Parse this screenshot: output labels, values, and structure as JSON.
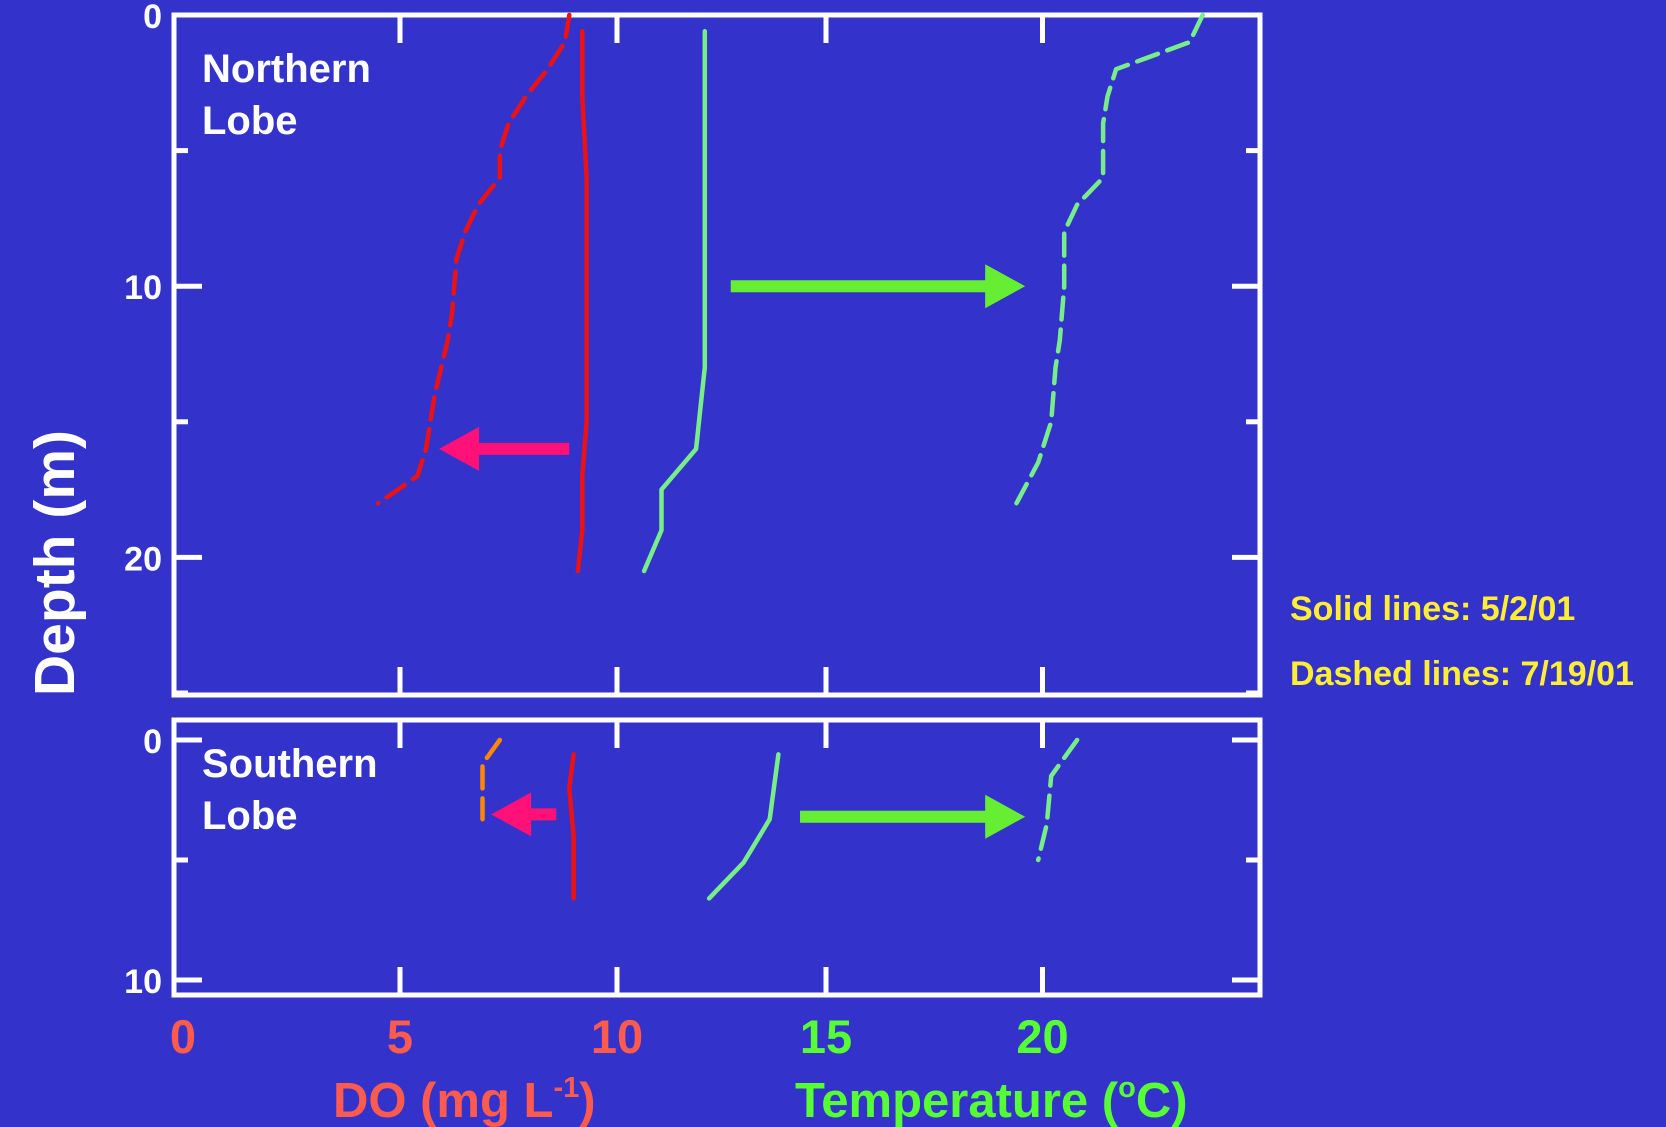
{
  "chart_data": {
    "type": "line",
    "y_axis_label": "Depth (m)",
    "x_axis_labels": [
      {
        "text": "DO (mg L",
        "sup": "-1",
        "tail": ")",
        "color": "#ff5a4e"
      },
      {
        "text": "Temperature (",
        "sup": "o",
        "tail": "C)",
        "color": "#55ff33"
      }
    ],
    "x_ticks_do": [
      0,
      5,
      10
    ],
    "x_ticks_temp": [
      15,
      20
    ],
    "legend": {
      "solid": "Solid lines: 5/2/01",
      "dashed": "Dashed lines: 7/19/01",
      "color": "#ffee33"
    },
    "panels": [
      {
        "name": "Northern Lobe",
        "label_lines": [
          "Northern",
          "Lobe"
        ],
        "depth_ticks": [
          "0",
          "10",
          "20"
        ],
        "ylim": [
          0,
          25
        ],
        "series": [
          {
            "name": "DO 5/2/01",
            "style": "solid",
            "color": "#ee1111",
            "axis": "do",
            "points": [
              [
                9.2,
                0.6
              ],
              [
                9.2,
                3
              ],
              [
                9.3,
                6
              ],
              [
                9.3,
                10
              ],
              [
                9.3,
                13
              ],
              [
                9.3,
                15
              ],
              [
                9.2,
                17
              ],
              [
                9.2,
                19
              ],
              [
                9.1,
                20.5
              ]
            ]
          },
          {
            "name": "DO 7/19/01",
            "style": "dashed",
            "color": "#ee1111",
            "axis": "do",
            "points": [
              [
                8.9,
                0
              ],
              [
                8.8,
                1
              ],
              [
                8.4,
                2
              ],
              [
                7.9,
                3
              ],
              [
                7.5,
                4
              ],
              [
                7.3,
                5
              ],
              [
                7.3,
                6
              ],
              [
                6.8,
                7
              ],
              [
                6.5,
                8
              ],
              [
                6.3,
                9
              ],
              [
                6.2,
                11
              ],
              [
                6.1,
                12
              ],
              [
                5.8,
                14
              ],
              [
                5.6,
                16
              ],
              [
                5.4,
                17
              ],
              [
                4.5,
                18
              ]
            ]
          },
          {
            "name": "Temperature 5/2/01",
            "style": "solid",
            "color": "#77ee88",
            "axis": "temp",
            "points": [
              [
                12.2,
                0.6
              ],
              [
                12.2,
                3
              ],
              [
                12.2,
                6
              ],
              [
                12.2,
                9
              ],
              [
                12.2,
                10
              ],
              [
                12.2,
                13
              ],
              [
                12.1,
                14.5
              ],
              [
                12.0,
                16
              ],
              [
                11.2,
                17.5
              ],
              [
                11.2,
                19
              ],
              [
                10.8,
                20.5
              ]
            ]
          },
          {
            "name": "Temperature 7/19/01",
            "style": "dashed",
            "color": "#77ee88",
            "axis": "temp",
            "points": [
              [
                23.7,
                0
              ],
              [
                23.4,
                1
              ],
              [
                21.7,
                2
              ],
              [
                21.5,
                3
              ],
              [
                21.4,
                4
              ],
              [
                21.4,
                6
              ],
              [
                20.8,
                7
              ],
              [
                20.5,
                8
              ],
              [
                20.5,
                10
              ],
              [
                20.4,
                12
              ],
              [
                20.3,
                13
              ],
              [
                20.2,
                15
              ],
              [
                19.9,
                16.5
              ],
              [
                19.4,
                18
              ]
            ]
          }
        ],
        "arrows": [
          {
            "color": "#ff1177",
            "from": [
              8.9,
              16
            ],
            "to": [
              5.9,
              16
            ],
            "axis": "do"
          },
          {
            "color": "#66ee33",
            "from": [
              12.8,
              10
            ],
            "to": [
              19.6,
              10
            ],
            "axis": "temp"
          }
        ]
      },
      {
        "name": "Southern Lobe",
        "label_lines": [
          "Southern",
          "Lobe"
        ],
        "depth_ticks": [
          "0",
          "10"
        ],
        "ylim": [
          0,
          10
        ],
        "series": [
          {
            "name": "DO 5/2/01",
            "style": "solid",
            "color": "#ee1111",
            "axis": "do",
            "points": [
              [
                9.0,
                0.6
              ],
              [
                8.9,
                2
              ],
              [
                9.0,
                4
              ],
              [
                9.0,
                6.6
              ]
            ]
          },
          {
            "name": "DO 7/19/01",
            "style": "dashed",
            "color": "#ff8800",
            "axis": "do",
            "points": [
              [
                7.3,
                0
              ],
              [
                6.9,
                1
              ],
              [
                6.9,
                2
              ],
              [
                6.9,
                3.3
              ]
            ]
          },
          {
            "name": "Temperature 5/2/01",
            "style": "solid",
            "color": "#77ee88",
            "axis": "temp",
            "points": [
              [
                13.9,
                0.6
              ],
              [
                13.7,
                3.3
              ],
              [
                13.1,
                5.1
              ],
              [
                12.3,
                6.6
              ]
            ]
          },
          {
            "name": "Temperature 7/19/01",
            "style": "dashed",
            "color": "#77ee88",
            "axis": "temp",
            "points": [
              [
                20.8,
                0
              ],
              [
                20.2,
                1.5
              ],
              [
                20.1,
                3.5
              ],
              [
                19.9,
                5
              ]
            ]
          }
        ],
        "arrows": [
          {
            "color": "#ff1177",
            "from": [
              8.6,
              3.1
            ],
            "to": [
              7.1,
              3.1
            ],
            "axis": "do"
          },
          {
            "color": "#66ee33",
            "from": [
              14.4,
              3.2
            ],
            "to": [
              19.6,
              3.2
            ],
            "axis": "temp"
          }
        ]
      }
    ]
  }
}
